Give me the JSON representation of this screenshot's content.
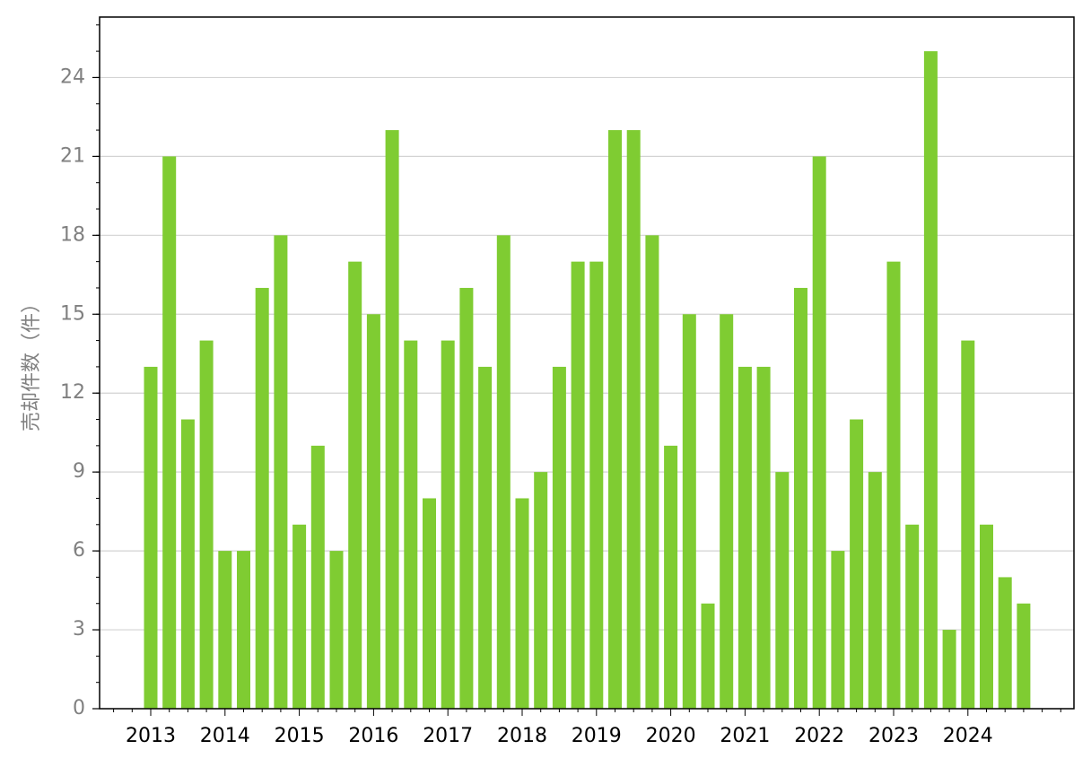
{
  "chart_data": {
    "type": "bar",
    "y_label": "売却件数（件）",
    "categories": [
      "2013",
      null,
      null,
      null,
      "2014",
      null,
      null,
      null,
      "2015",
      null,
      null,
      null,
      "2016",
      null,
      null,
      null,
      "2017",
      null,
      null,
      null,
      "2018",
      null,
      null,
      null,
      "2019",
      null,
      null,
      null,
      "2020",
      null,
      null,
      null,
      "2021",
      null,
      null,
      null,
      "2022",
      null,
      null,
      null,
      "2023",
      null,
      null,
      null,
      "2024",
      null,
      null,
      null
    ],
    "values": [
      13,
      21,
      11,
      14,
      6,
      6,
      16,
      18,
      7,
      10,
      6,
      17,
      15,
      22,
      14,
      8,
      14,
      16,
      13,
      18,
      8,
      9,
      13,
      17,
      17,
      22,
      22,
      18,
      10,
      15,
      4,
      15,
      13,
      13,
      9,
      16,
      21,
      6,
      11,
      9,
      17,
      7,
      25,
      3,
      14,
      7,
      5,
      4
    ],
    "color": "#7fcc32",
    "ylim": [
      0,
      26.3
    ],
    "yticks": [
      0,
      3,
      6,
      9,
      12,
      15,
      18,
      21,
      24
    ],
    "grid": true
  }
}
